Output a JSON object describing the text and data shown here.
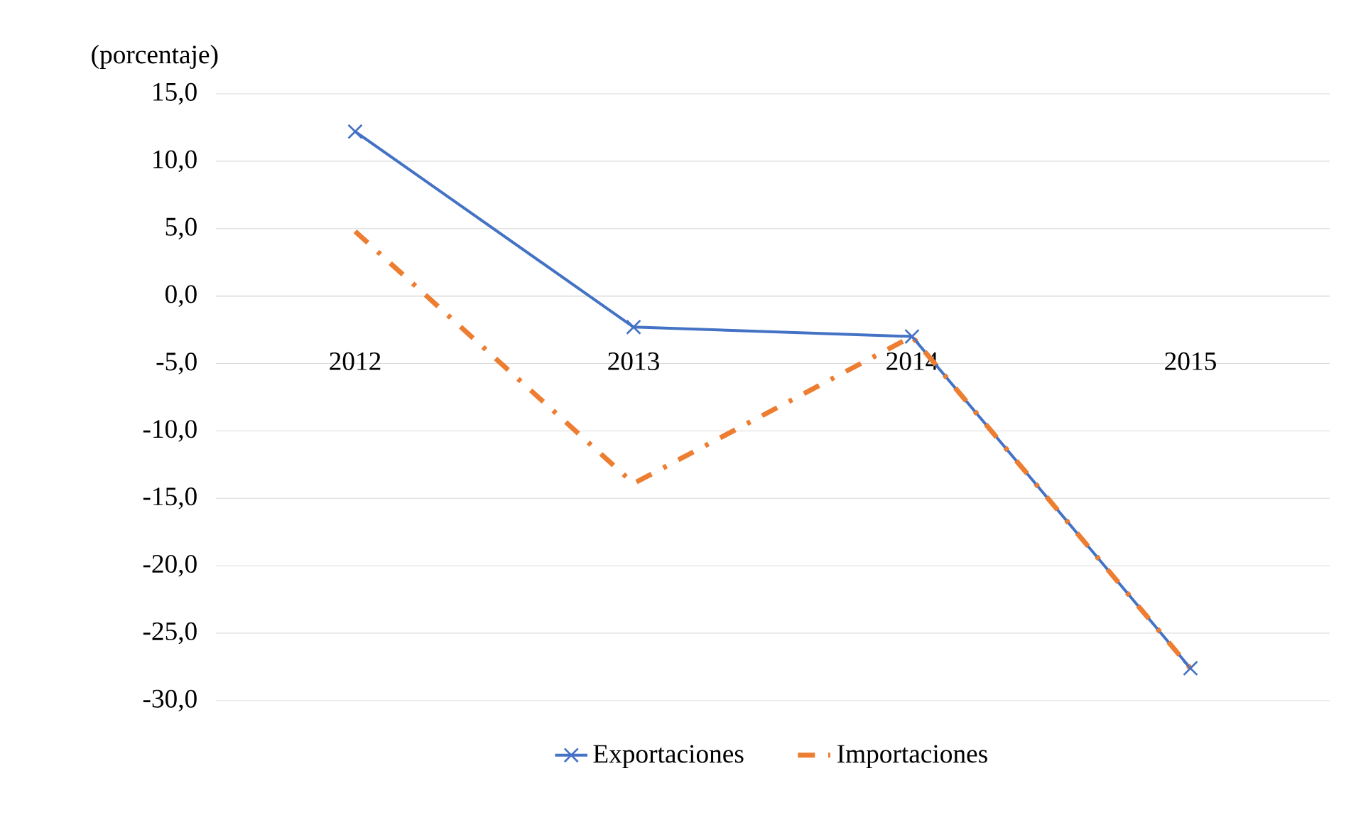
{
  "chart_data": {
    "type": "line",
    "ylabel": "(porcentaje)",
    "categories": [
      "2012",
      "2013",
      "2014",
      "2015"
    ],
    "series": [
      {
        "name": "Exportaciones",
        "color": "#4472c4",
        "values": [
          12.2,
          -2.3,
          -3.0,
          -27.6
        ],
        "marker": "cross",
        "line_style": "solid"
      },
      {
        "name": "Importaciones",
        "color": "#ed7d31",
        "values": [
          4.8,
          -13.9,
          -3.0,
          -27.6
        ],
        "marker": "none",
        "line_style": "dashed"
      }
    ],
    "ylim": [
      -30,
      15
    ],
    "yticks": [
      {
        "value": -30,
        "label": "-30,0"
      },
      {
        "value": -25,
        "label": "-25,0"
      },
      {
        "value": -20,
        "label": "-20,0"
      },
      {
        "value": -15,
        "label": "-15,0"
      },
      {
        "value": -10,
        "label": "-10,0"
      },
      {
        "value": -5,
        "label": "-5,0"
      },
      {
        "value": 0,
        "label": "0,0"
      },
      {
        "value": 5,
        "label": "5,0"
      },
      {
        "value": 10,
        "label": "10,0"
      },
      {
        "value": 15,
        "label": "15,0"
      }
    ],
    "grid": "y",
    "legend": "bottom"
  }
}
